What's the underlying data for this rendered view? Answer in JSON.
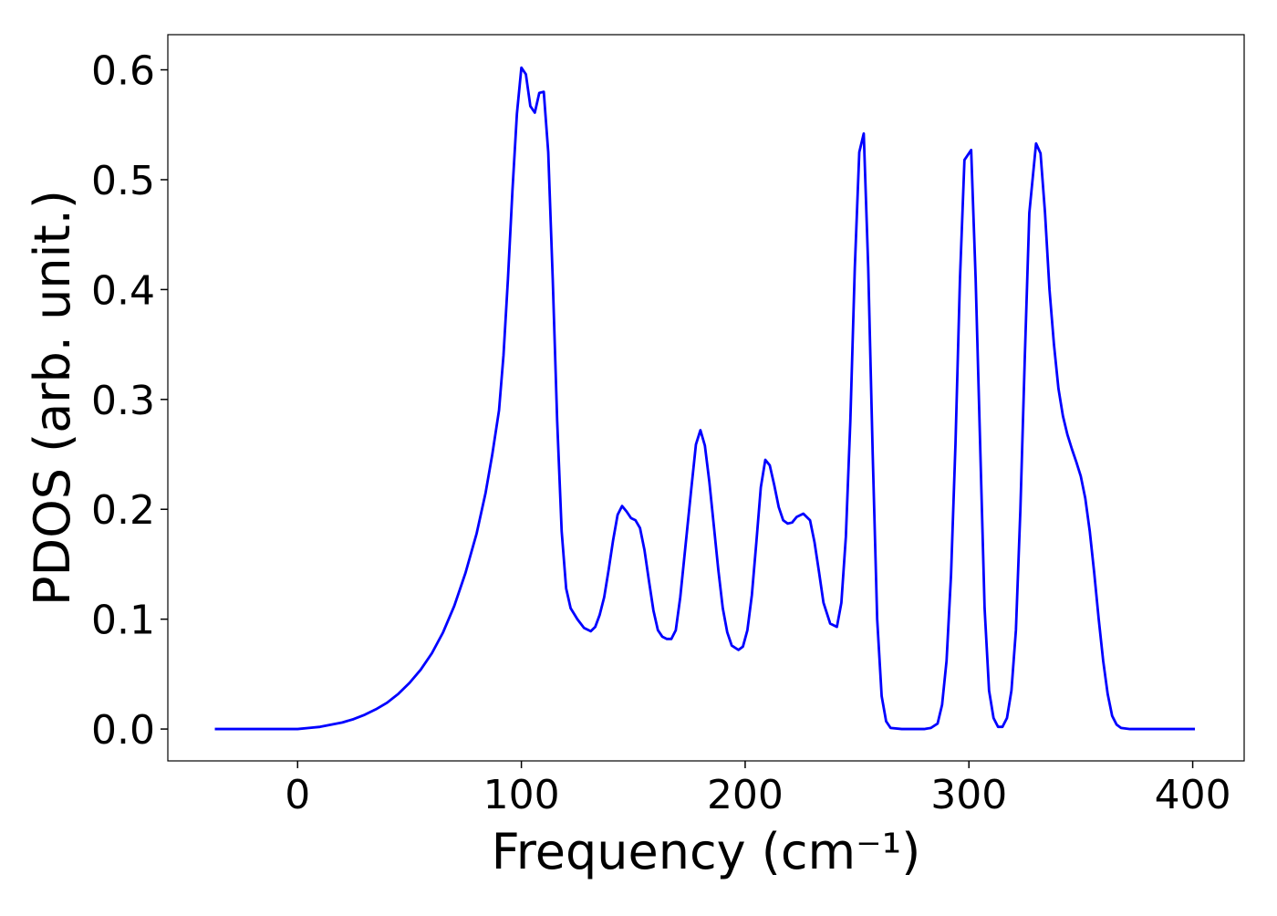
{
  "chart_data": {
    "type": "line",
    "xlabel": "Frequency (cm⁻¹)",
    "ylabel": "PDOS (arb. unit.)",
    "color": "#0000ff",
    "xlim": [
      -58,
      423
    ],
    "ylim": [
      -0.029,
      0.632
    ],
    "xticks": [
      0,
      100,
      200,
      300,
      400
    ],
    "yticks": [
      {
        "value": 0,
        "label": "0.0"
      },
      0.1,
      0.2,
      0.3,
      0.4,
      0.5,
      0.6
    ],
    "x": [
      -37,
      0,
      5,
      10,
      15,
      20,
      25,
      30,
      35,
      40,
      45,
      50,
      55,
      60,
      65,
      70,
      75,
      80,
      84,
      87,
      90,
      92,
      94,
      96,
      98,
      100,
      102,
      104,
      106,
      108,
      110,
      112,
      114,
      116,
      118,
      120,
      122,
      125,
      128,
      131,
      133,
      135,
      137,
      139,
      141,
      143,
      145,
      147,
      149,
      151,
      153,
      155,
      157,
      159,
      161,
      163,
      165,
      167,
      169,
      171,
      174,
      176,
      178,
      180,
      182,
      184,
      186,
      188,
      190,
      192,
      194,
      197,
      199,
      201,
      203,
      205,
      207,
      209,
      211,
      213,
      215,
      217,
      219,
      221,
      223,
      226,
      229,
      231,
      233,
      235,
      238,
      241,
      243,
      245,
      247,
      249,
      251,
      253,
      255,
      257,
      259,
      261,
      263,
      265,
      270,
      280,
      283,
      286,
      288,
      290,
      292,
      294,
      296,
      298,
      301,
      303,
      305,
      307,
      309,
      311,
      313,
      315,
      317,
      319,
      321,
      323,
      325,
      327,
      330,
      332,
      334,
      336,
      338,
      340,
      342,
      344,
      346,
      348,
      350,
      352,
      354,
      356,
      358,
      360,
      362,
      364,
      366,
      368,
      372,
      401
    ],
    "values": [
      0,
      0,
      0.001,
      0.002,
      0.004,
      0.006,
      0.009,
      0.013,
      0.018,
      0.024,
      0.032,
      0.042,
      0.054,
      0.069,
      0.088,
      0.112,
      0.142,
      0.178,
      0.215,
      0.25,
      0.29,
      0.34,
      0.41,
      0.49,
      0.56,
      0.602,
      0.596,
      0.567,
      0.561,
      0.579,
      0.58,
      0.525,
      0.41,
      0.28,
      0.18,
      0.128,
      0.11,
      0.1,
      0.092,
      0.089,
      0.093,
      0.104,
      0.12,
      0.145,
      0.172,
      0.195,
      0.203,
      0.198,
      0.192,
      0.19,
      0.183,
      0.163,
      0.135,
      0.108,
      0.09,
      0.084,
      0.082,
      0.082,
      0.09,
      0.12,
      0.18,
      0.22,
      0.259,
      0.272,
      0.258,
      0.225,
      0.185,
      0.145,
      0.11,
      0.088,
      0.076,
      0.072,
      0.075,
      0.09,
      0.122,
      0.17,
      0.22,
      0.245,
      0.24,
      0.222,
      0.202,
      0.19,
      0.187,
      0.188,
      0.193,
      0.196,
      0.19,
      0.17,
      0.143,
      0.115,
      0.096,
      0.093,
      0.115,
      0.175,
      0.28,
      0.42,
      0.525,
      0.542,
      0.42,
      0.25,
      0.1,
      0.03,
      0.007,
      0.001,
      0,
      0,
      0.001,
      0.005,
      0.022,
      0.062,
      0.14,
      0.26,
      0.41,
      0.518,
      0.527,
      0.41,
      0.26,
      0.11,
      0.035,
      0.01,
      0.002,
      0.002,
      0.01,
      0.035,
      0.09,
      0.2,
      0.34,
      0.47,
      0.533,
      0.524,
      0.47,
      0.4,
      0.35,
      0.31,
      0.285,
      0.268,
      0.255,
      0.243,
      0.23,
      0.21,
      0.18,
      0.142,
      0.1,
      0.062,
      0.032,
      0.012,
      0.004,
      0.001,
      0,
      0
    ]
  }
}
